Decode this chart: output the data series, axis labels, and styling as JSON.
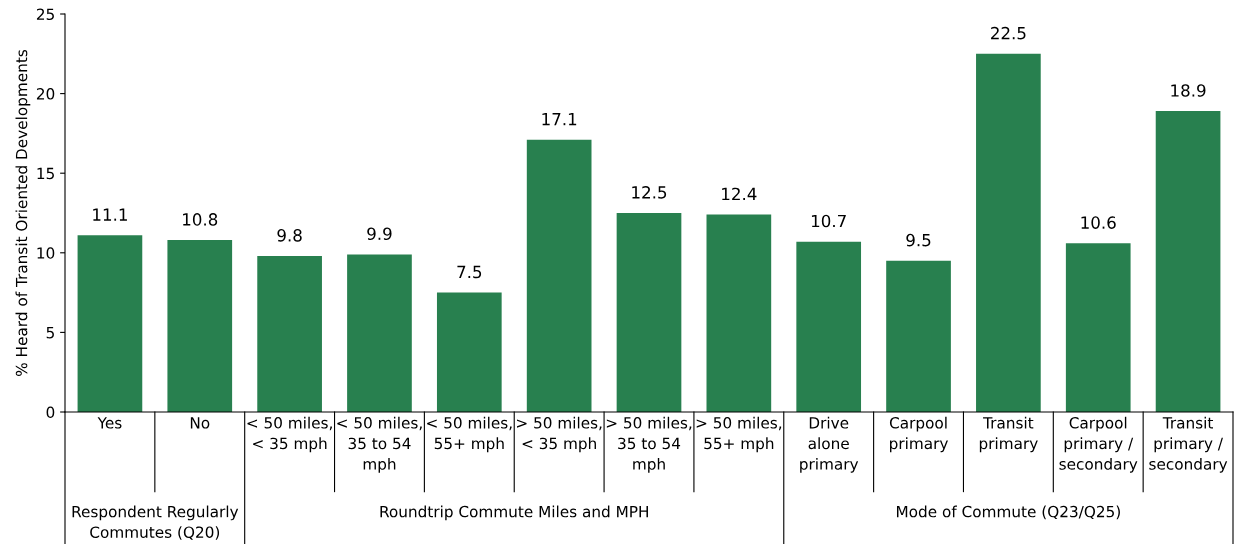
{
  "chart_data": {
    "type": "bar",
    "ylabel": "% Heard of Transit Oriented Developments",
    "categories": [
      "Yes",
      "No",
      "< 50 miles,\n< 35 mph",
      "< 50 miles,\n35 to 54\nmph",
      "< 50 miles,\n55+ mph",
      "> 50 miles,\n< 35 mph",
      "> 50 miles,\n35 to 54\nmph",
      "> 50 miles,\n55+ mph",
      "Drive\nalone\nprimary",
      "Carpool\nprimary",
      "Transit\nprimary",
      "Carpool\nprimary /\nsecondary",
      "Transit\nprimary /\nsecondary"
    ],
    "values": [
      11.1,
      10.8,
      9.8,
      9.9,
      7.5,
      17.1,
      12.5,
      12.4,
      10.7,
      9.5,
      22.5,
      10.6,
      18.9
    ],
    "color": "#28804f",
    "data_labels": true,
    "ylim": [
      0,
      25
    ],
    "yticks": [
      0,
      5,
      10,
      15,
      20,
      25
    ],
    "grid": false,
    "annotations": [
      "Respondent Regularly\nCommutes (Q20)",
      "Roundtrip Commute Miles and MPH",
      "Mode of Commute (Q23/Q25)"
    ]
  }
}
